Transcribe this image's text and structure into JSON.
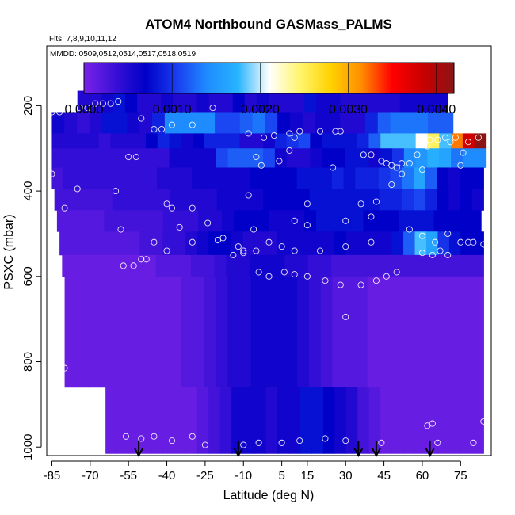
{
  "chart_data": {
    "type": "heatmap",
    "title": "ATOM4 Northbound GASMass_PALMS",
    "subtitle_flights": "Flts: 7,8,9,10,11,12",
    "subtitle_dates": "MMDD: 0509,0512,0514,0517,0518,0519",
    "xlabel": "Latitude (deg N)",
    "ylabel": "PSXC (mbar)",
    "xlim": [
      -87,
      87
    ],
    "ylim": [
      1020,
      60
    ],
    "x_ticks": [
      -85,
      -70,
      -55,
      -40,
      -25,
      -10,
      5,
      15,
      30,
      45,
      60,
      75
    ],
    "x_tick_labels": [
      "-85",
      "-70",
      "-55",
      "-40",
      "-25",
      "-10",
      "5",
      "15",
      "30",
      "45",
      "60",
      "75"
    ],
    "y_ticks": [
      200,
      400,
      600,
      800,
      1000
    ],
    "y_tick_labels": [
      "200",
      "400",
      "600",
      "800",
      "1000"
    ],
    "colorbar": {
      "min": 0.0,
      "max": 0.0042,
      "ticks": [
        0.0,
        0.001,
        0.002,
        0.003,
        0.004
      ],
      "tick_labels": [
        "0.0000",
        "0.0010",
        "0.0020",
        "0.0030",
        "0.0040"
      ],
      "colors": [
        "#7a22e8",
        "#3a10d8",
        "#0000c8",
        "#1a3cf0",
        "#1e8cff",
        "#28b4ff",
        "#ffffff",
        "#fff56e",
        "#ffd200",
        "#ff8c00",
        "#ff0000",
        "#c80000",
        "#8c1414"
      ]
    },
    "layers": [
      {
        "p_top": 165,
        "p_bot": 215,
        "lat_start": -75,
        "lat_end": 70,
        "values": [
          0.0005,
          0.0005,
          0.0006,
          0.0008,
          0.0007,
          0.0005,
          0.0005,
          0.0006,
          0.0005,
          0.0005,
          0.0006,
          0.0005,
          0.0005,
          0.0007,
          0.0005,
          0.0006,
          0.0005,
          0.0005,
          0.0005,
          0.0008,
          0.0006,
          0.0006,
          0.0005,
          0.0005,
          0.0005,
          0.0005,
          0.0005,
          0.0006,
          0.0006,
          0.0006,
          0.0006
        ]
      },
      {
        "p_top": 215,
        "p_bot": 265,
        "lat_start": -85,
        "lat_end": 72,
        "values": [
          0.0006,
          0.0005,
          0.0004,
          0.0005,
          0.0008,
          0.0008,
          0.0006,
          0.0005,
          0.0009,
          0.0014,
          0.0014,
          0.0014,
          0.0014,
          0.0011,
          0.0011,
          0.0012,
          0.0013,
          0.0011,
          0.0007,
          0.0006,
          0.0005,
          0.0006,
          0.0006,
          0.0005,
          0.0005,
          0.0009,
          0.0012,
          0.0013,
          0.0013,
          0.0013,
          0.0012,
          0.0012
        ]
      },
      {
        "p_top": 265,
        "p_bot": 300,
        "lat_start": -85,
        "lat_end": 85,
        "values": [
          0.0005,
          0.0005,
          0.0005,
          0.0005,
          0.0004,
          0.0005,
          0.0005,
          0.0005,
          0.0007,
          0.0009,
          0.0008,
          0.0006,
          0.0007,
          0.0009,
          0.0009,
          0.0009,
          0.0005,
          0.0005,
          0.0006,
          0.0009,
          0.001,
          0.0011,
          0.0007,
          0.0008,
          0.0008,
          0.0008,
          0.0009,
          0.0012,
          0.0018,
          0.0018,
          0.0018,
          0.0021,
          0.0025,
          0.0018,
          0.0032,
          0.0038,
          0.0042
        ]
      },
      {
        "p_top": 300,
        "p_bot": 345,
        "lat_start": -85,
        "lat_end": 85,
        "values": [
          0.0004,
          0.0004,
          0.0004,
          0.0004,
          0.0004,
          0.0004,
          0.0004,
          0.0004,
          0.0004,
          0.0004,
          0.0006,
          0.0006,
          0.0006,
          0.0006,
          0.0011,
          0.0012,
          0.0012,
          0.0012,
          0.0011,
          0.0006,
          0.0005,
          0.0005,
          0.0006,
          0.0007,
          0.0007,
          0.0008,
          0.0008,
          0.0006,
          0.0008,
          0.001,
          0.0014,
          0.0015,
          0.0017,
          0.0016,
          0.0013,
          0.0014,
          0.0014
        ]
      },
      {
        "p_top": 345,
        "p_bot": 395,
        "lat_start": -85,
        "lat_end": 84,
        "values": [
          0.0003,
          0.0004,
          0.0004,
          0.0004,
          0.0004,
          0.0004,
          0.0004,
          0.0004,
          0.0004,
          0.0005,
          0.0005,
          0.0005,
          0.0006,
          0.0006,
          0.0006,
          0.0006,
          0.0006,
          0.0007,
          0.0007,
          0.0007,
          0.0007,
          0.0008,
          0.0008,
          0.0008,
          0.0009,
          0.0008,
          0.0009,
          0.0009,
          0.001,
          0.0011,
          0.0013,
          0.0016,
          0.0012,
          0.0007,
          0.0006,
          0.0007,
          0.0007
        ]
      },
      {
        "p_top": 395,
        "p_bot": 445,
        "lat_start": -84,
        "lat_end": 84,
        "values": [
          0.0003,
          0.0003,
          0.0003,
          0.0003,
          0.0003,
          0.0004,
          0.0004,
          0.0004,
          0.0004,
          0.0004,
          0.0005,
          0.0005,
          0.0005,
          0.0005,
          0.0006,
          0.0006,
          0.0006,
          0.0006,
          0.0007,
          0.0007,
          0.0007,
          0.0007,
          0.0008,
          0.0008,
          0.0008,
          0.0008,
          0.0008,
          0.0008,
          0.0009,
          0.0009,
          0.001,
          0.0011,
          0.0009,
          0.0007,
          0.0006,
          0.0007,
          0.0006
        ]
      },
      {
        "p_top": 445,
        "p_bot": 495,
        "lat_start": -83,
        "lat_end": 83,
        "values": [
          0.0002,
          0.0002,
          0.0002,
          0.0002,
          0.0003,
          0.0003,
          0.0003,
          0.0003,
          0.0003,
          0.0004,
          0.0004,
          0.0004,
          0.0005,
          0.0005,
          0.0006,
          0.0007,
          0.0007,
          0.0007,
          0.0006,
          0.0006,
          0.0006,
          0.0007,
          0.0008,
          0.0008,
          0.0008,
          0.0008,
          0.0007,
          0.0007,
          0.0007,
          0.0008,
          0.0008,
          0.0008,
          0.0007,
          0.0007,
          0.0007,
          0.0007
        ]
      },
      {
        "p_top": 495,
        "p_bot": 550,
        "lat_start": -82,
        "lat_end": 84,
        "values": [
          0.0002,
          0.0002,
          0.0002,
          0.0002,
          0.0002,
          0.0002,
          0.0002,
          0.0003,
          0.0003,
          0.0004,
          0.0004,
          0.0005,
          0.0006,
          0.0007,
          0.0007,
          0.0006,
          0.0005,
          0.0005,
          0.0005,
          0.0006,
          0.0006,
          0.0006,
          0.0006,
          0.0006,
          0.0007,
          0.0006,
          0.0006,
          0.0006,
          0.0006,
          0.0008,
          0.0012,
          0.0018,
          0.0016,
          0.001,
          0.0008,
          0.0007,
          0.0007
        ]
      },
      {
        "p_top": 550,
        "p_bot": 600,
        "lat_start": -81,
        "lat_end": 84,
        "values": [
          0.0001,
          0.0001,
          0.0001,
          0.0001,
          0.0001,
          0.0001,
          0.0001,
          0.0001,
          0.0002,
          0.0002,
          0.0002,
          0.0003,
          0.0003,
          0.0004,
          0.0005,
          0.0005,
          0.0006,
          0.0006,
          0.0006,
          0.0005,
          0.0005,
          0.0004,
          0.0004,
          0.0003,
          0.0003,
          0.0003,
          0.0003,
          0.0003,
          0.0003,
          0.0003,
          0.0003,
          0.0003,
          0.0003,
          0.0003,
          0.0003,
          0.0003
        ]
      },
      {
        "p_top": 600,
        "p_bot": 860,
        "lat_start": -80,
        "lat_end": 84,
        "values": [
          0.0001,
          0.0001,
          0.0001,
          0.0001,
          0.0001,
          0.0001,
          0.0001,
          0.0001,
          0.0001,
          0.0001,
          0.0002,
          0.0002,
          0.0003,
          0.0004,
          0.0005,
          0.0005,
          0.0006,
          0.0006,
          0.0006,
          0.0006,
          0.0005,
          0.0004,
          0.0003,
          0.0002,
          0.0002,
          0.0002,
          0.0001,
          0.0001,
          0.0001,
          0.0001,
          0.0001,
          0.0001,
          0.0001,
          0.0001,
          0.0001,
          0.0001
        ]
      },
      {
        "p_top": 860,
        "p_bot": 1015,
        "lat_start": -64,
        "lat_end": 84,
        "values": [
          0.0001,
          0.0001,
          0.0001,
          0.0001,
          0.0001,
          0.0001,
          0.0001,
          0.0001,
          0.0002,
          0.0003,
          0.0004,
          0.0006,
          0.0006,
          0.0006,
          0.0005,
          0.0006,
          0.0006,
          0.0008,
          0.0008,
          0.0007,
          0.0006,
          0.0005,
          0.0003,
          0.0002,
          0.0001,
          0.0001,
          0.0001,
          0.0001,
          0.0001,
          0.0001,
          0.0001,
          0.0001,
          0.0001
        ]
      }
    ],
    "sample_points": [
      [
        -85,
        215
      ],
      [
        -82,
        215
      ],
      [
        -74,
        205
      ],
      [
        -71,
        205
      ],
      [
        -68,
        195
      ],
      [
        -65,
        195
      ],
      [
        -62,
        195
      ],
      [
        -59,
        190
      ],
      [
        -22,
        205
      ],
      [
        -8,
        265
      ],
      [
        -2,
        275
      ],
      [
        8,
        265
      ],
      [
        -50,
        230
      ],
      [
        -45,
        255
      ],
      [
        -42,
        255
      ],
      [
        -38,
        245
      ],
      [
        -30,
        245
      ],
      [
        10,
        275
      ],
      [
        2,
        270
      ],
      [
        12,
        260
      ],
      [
        20,
        260
      ],
      [
        26,
        260
      ],
      [
        28,
        260
      ],
      [
        -55,
        320
      ],
      [
        -52,
        320
      ],
      [
        -5,
        320
      ],
      [
        -3,
        340
      ],
      [
        4,
        330
      ],
      [
        8,
        305
      ],
      [
        25,
        345
      ],
      [
        37,
        315
      ],
      [
        40,
        315
      ],
      [
        44,
        330
      ],
      [
        46,
        335
      ],
      [
        48,
        340
      ],
      [
        50,
        345
      ],
      [
        52,
        335
      ],
      [
        55,
        335
      ],
      [
        58,
        315
      ],
      [
        62,
        295
      ],
      [
        63,
        280
      ],
      [
        66,
        280
      ],
      [
        69,
        275
      ],
      [
        71,
        285
      ],
      [
        73,
        275
      ],
      [
        76,
        310
      ],
      [
        78,
        285
      ],
      [
        82,
        275
      ],
      [
        -85,
        360
      ],
      [
        -60,
        400
      ],
      [
        -8,
        410
      ],
      [
        15,
        430
      ],
      [
        36,
        430
      ],
      [
        42,
        425
      ],
      [
        48,
        385
      ],
      [
        52,
        360
      ],
      [
        60,
        350
      ],
      [
        75,
        340
      ],
      [
        -75,
        395
      ],
      [
        -40,
        430
      ],
      [
        -38,
        440
      ],
      [
        -30,
        440
      ],
      [
        -80,
        440
      ],
      [
        -35,
        485
      ],
      [
        -24,
        475
      ],
      [
        -18,
        510
      ],
      [
        -12,
        530
      ],
      [
        -6,
        490
      ],
      [
        10,
        470
      ],
      [
        15,
        480
      ],
      [
        30,
        470
      ],
      [
        40,
        460
      ],
      [
        -58,
        490
      ],
      [
        -45,
        520
      ],
      [
        -30,
        520
      ],
      [
        -20,
        515
      ],
      [
        -10,
        540
      ],
      [
        -5,
        540
      ],
      [
        0,
        520
      ],
      [
        5,
        530
      ],
      [
        10,
        540
      ],
      [
        20,
        540
      ],
      [
        30,
        530
      ],
      [
        40,
        520
      ],
      [
        55,
        490
      ],
      [
        60,
        505
      ],
      [
        65,
        520
      ],
      [
        70,
        500
      ],
      [
        75,
        520
      ],
      [
        78,
        520
      ],
      [
        80,
        520
      ],
      [
        84,
        525
      ],
      [
        -57,
        575
      ],
      [
        -53,
        575
      ],
      [
        -50,
        560
      ],
      [
        -48,
        560
      ],
      [
        -40,
        540
      ],
      [
        -14,
        550
      ],
      [
        -10,
        545
      ],
      [
        -4,
        590
      ],
      [
        0,
        600
      ],
      [
        6,
        590
      ],
      [
        10,
        595
      ],
      [
        15,
        600
      ],
      [
        22,
        610
      ],
      [
        28,
        620
      ],
      [
        36,
        620
      ],
      [
        42,
        610
      ],
      [
        46,
        600
      ],
      [
        50,
        590
      ],
      [
        60,
        545
      ],
      [
        64,
        550
      ],
      [
        67,
        540
      ],
      [
        70,
        550
      ],
      [
        -80,
        815
      ],
      [
        30,
        695
      ],
      [
        -56,
        975
      ],
      [
        -50,
        980
      ],
      [
        -45,
        975
      ],
      [
        -38,
        985
      ],
      [
        -30,
        975
      ],
      [
        -25,
        995
      ],
      [
        -10,
        995
      ],
      [
        -4,
        990
      ],
      [
        5,
        990
      ],
      [
        12,
        985
      ],
      [
        22,
        980
      ],
      [
        30,
        985
      ],
      [
        44,
        990
      ],
      [
        62,
        950
      ],
      [
        64,
        945
      ],
      [
        66,
        990
      ],
      [
        80,
        990
      ],
      [
        84,
        940
      ]
    ],
    "flight_markers_lat": [
      -51,
      -12,
      35,
      42,
      63
    ]
  }
}
